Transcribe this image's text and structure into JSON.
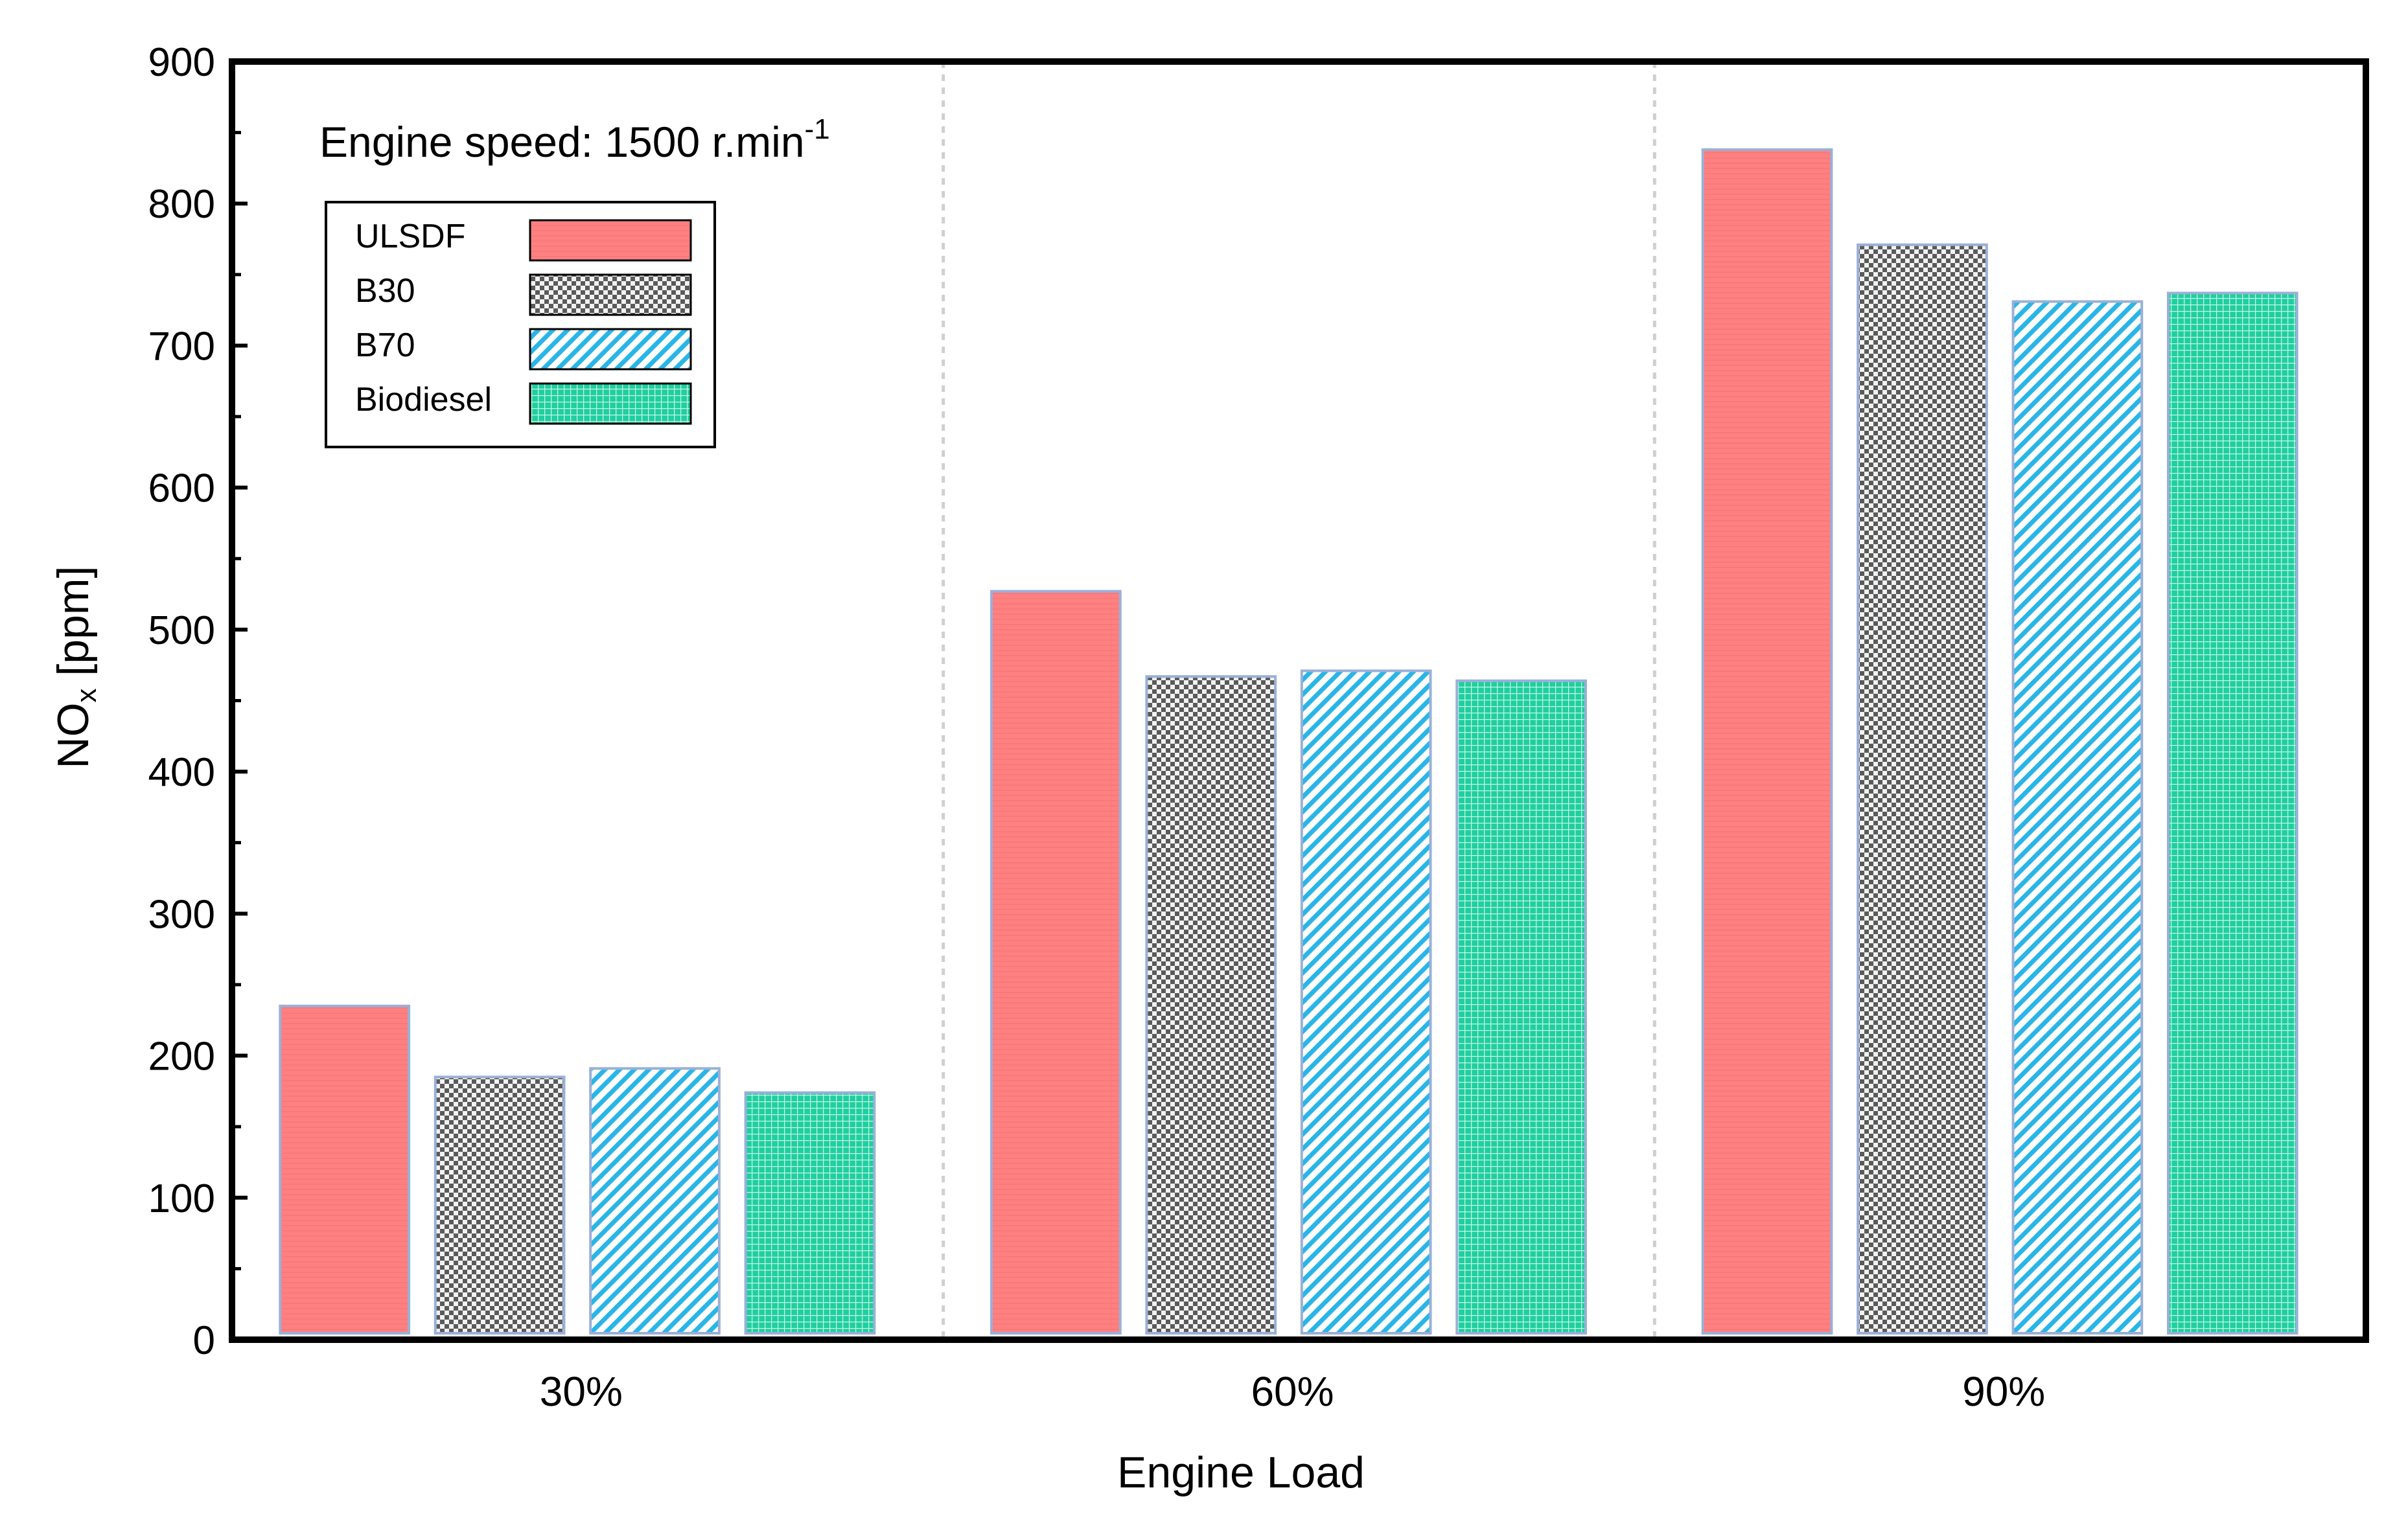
{
  "chart_data": {
    "type": "bar",
    "title": "",
    "annotation": {
      "prefix": "Engine speed: 1500 r.min",
      "superscript": "-1"
    },
    "xlabel": "Engine Load",
    "ylabel": {
      "main": "NO",
      "subscript": "x",
      "unit": " [ppm]"
    },
    "ylim": [
      0,
      900
    ],
    "y_ticks": [
      0,
      100,
      200,
      300,
      400,
      500,
      600,
      700,
      800,
      900
    ],
    "y_minor_step": 50,
    "grid": false,
    "group_separators": true,
    "legend_position": "top-left",
    "categories": [
      "30%",
      "60%",
      "90%"
    ],
    "series": [
      {
        "name": "ULSDF",
        "values": [
          235,
          527,
          838
        ],
        "color": "#ff8080",
        "pattern": "solid"
      },
      {
        "name": "B30",
        "values": [
          185,
          467,
          771
        ],
        "color": "#606060",
        "pattern": "checker"
      },
      {
        "name": "B70",
        "values": [
          191,
          471,
          731
        ],
        "color": "#29b5e8",
        "pattern": "diagonal"
      },
      {
        "name": "Biodiesel",
        "values": [
          174,
          464,
          737
        ],
        "color": "#1fcf9f",
        "pattern": "grid"
      }
    ]
  }
}
